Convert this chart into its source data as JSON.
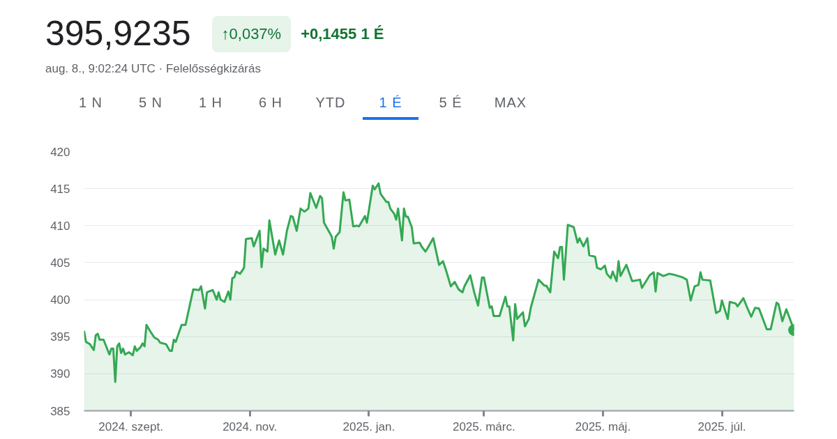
{
  "chart_data": {
    "type": "area",
    "title": "395,9235",
    "subtitle": "aug. 8., 9:02:24 UTC · Felelősségkizárás",
    "annotations": [
      "↑0,037%",
      "+0,1455 1 É",
      "1 N",
      "5 N",
      "1 H",
      "6 H",
      "YTD",
      "1 É",
      "5 É",
      "MAX"
    ],
    "x": [
      "2024-08-08",
      "2024-08-09",
      "2024-08-11",
      "2024-08-13",
      "2024-08-14",
      "2024-08-15",
      "2024-08-16",
      "2024-08-18",
      "2024-08-21",
      "2024-08-22",
      "2024-08-23",
      "2024-08-24",
      "2024-08-25",
      "2024-08-26",
      "2024-08-27",
      "2024-08-28",
      "2024-08-29",
      "2024-08-31",
      "2024-09-02",
      "2024-09-03",
      "2024-09-04",
      "2024-09-06",
      "2024-09-07",
      "2024-09-08",
      "2024-09-09",
      "2024-09-11",
      "2024-09-13",
      "2024-09-15",
      "2024-09-16",
      "2024-09-19",
      "2024-09-21",
      "2024-09-22",
      "2024-09-23",
      "2024-09-24",
      "2024-09-27",
      "2024-09-29",
      "2024-10-03",
      "2024-10-06",
      "2024-10-07",
      "2024-10-09",
      "2024-10-10",
      "2024-10-13",
      "2024-10-15",
      "2024-10-16",
      "2024-10-17",
      "2024-10-19",
      "2024-10-21",
      "2024-10-22",
      "2024-10-23",
      "2024-10-24",
      "2024-10-25",
      "2024-10-27",
      "2024-10-29",
      "2024-10-30",
      "2024-11-02",
      "2024-11-03",
      "2024-11-04",
      "2024-11-06",
      "2024-11-07",
      "2024-11-08",
      "2024-11-10",
      "2024-11-11",
      "2024-11-14",
      "2024-11-16",
      "2024-11-18",
      "2024-11-20",
      "2024-11-22",
      "2024-11-23",
      "2024-11-25",
      "2024-11-27",
      "2024-11-29",
      "2024-12-01",
      "2024-12-02",
      "2024-12-05",
      "2024-12-07",
      "2024-12-08",
      "2024-12-09",
      "2024-12-12",
      "2024-12-13",
      "2024-12-14",
      "2024-12-15",
      "2024-12-17",
      "2024-12-19",
      "2024-12-20",
      "2024-12-22",
      "2024-12-24",
      "2024-12-26",
      "2024-12-27",
      "2024-12-30",
      "2024-12-31",
      "2025-01-03",
      "2025-01-04",
      "2025-01-06",
      "2025-01-07",
      "2025-01-10",
      "2025-01-11",
      "2025-01-12",
      "2025-01-14",
      "2025-01-15",
      "2025-01-16",
      "2025-01-18",
      "2025-01-19",
      "2025-01-20",
      "2025-01-21",
      "2025-01-23",
      "2025-01-24",
      "2025-01-27",
      "2025-01-28",
      "2025-01-30",
      "2025-01-31",
      "2025-02-03",
      "2025-02-06",
      "2025-02-08",
      "2025-02-10",
      "2025-02-12",
      "2025-02-14",
      "2025-02-16",
      "2025-02-18",
      "2025-02-19",
      "2025-02-22",
      "2025-02-24",
      "2025-02-26",
      "2025-02-28",
      "2025-03-01",
      "2025-03-04",
      "2025-03-05",
      "2025-03-06",
      "2025-03-09",
      "2025-03-12",
      "2025-03-13",
      "2025-03-14",
      "2025-03-16",
      "2025-03-17",
      "2025-03-18",
      "2025-03-21",
      "2025-03-22",
      "2025-03-24",
      "2025-03-25",
      "2025-03-29",
      "2025-04-01",
      "2025-04-02",
      "2025-04-04",
      "2025-04-06",
      "2025-04-08",
      "2025-04-09",
      "2025-04-10",
      "2025-04-11",
      "2025-04-13",
      "2025-04-16",
      "2025-04-18",
      "2025-04-19",
      "2025-04-21",
      "2025-04-23",
      "2025-04-24",
      "2025-04-27",
      "2025-04-28",
      "2025-04-30",
      "2025-05-02",
      "2025-05-03",
      "2025-05-05",
      "2025-05-06",
      "2025-05-08",
      "2025-05-09",
      "2025-05-10",
      "2025-05-13",
      "2025-05-16",
      "2025-05-20",
      "2025-05-21",
      "2025-05-25",
      "2025-05-27",
      "2025-05-28",
      "2025-05-29",
      "2025-06-01",
      "2025-06-04",
      "2025-06-06",
      "2025-06-11",
      "2025-06-13",
      "2025-06-15",
      "2025-06-17",
      "2025-06-19",
      "2025-06-20",
      "2025-06-21",
      "2025-06-25",
      "2025-06-28",
      "2025-06-30",
      "2025-07-01",
      "2025-07-04",
      "2025-07-05",
      "2025-07-08",
      "2025-07-09",
      "2025-07-12",
      "2025-07-14",
      "2025-07-16",
      "2025-07-18",
      "2025-07-20",
      "2025-07-24",
      "2025-07-26",
      "2025-07-29",
      "2025-07-30",
      "2025-08-01",
      "2025-08-03",
      "2025-08-04",
      "2025-08-07"
    ],
    "series": [
      {
        "color": "#34a853",
        "values": [
          395.8,
          394.3,
          394.0,
          393.2,
          395.2,
          395.4,
          394.6,
          394.6,
          392.6,
          393.4,
          393.4,
          388.9,
          393.7,
          394.1,
          392.8,
          393.4,
          392.6,
          392.9,
          392.5,
          393.7,
          393.1,
          393.6,
          394.1,
          393.7,
          396.6,
          395.7,
          394.9,
          394.6,
          394.2,
          394.0,
          393.1,
          393.1,
          394.6,
          394.3,
          396.6,
          396.6,
          401.4,
          401.3,
          401.8,
          398.8,
          401.0,
          401.3,
          400.0,
          401.0,
          400.0,
          399.7,
          401.1,
          400.0,
          402.9,
          403.0,
          403.8,
          403.5,
          404.3,
          408.2,
          408.3,
          407.2,
          407.9,
          409.3,
          404.4,
          406.9,
          406.5,
          410.7,
          406.1,
          408.0,
          406.1,
          409.3,
          411.3,
          411.2,
          409.3,
          412.3,
          411.9,
          412.3,
          414.4,
          412.4,
          414.0,
          413.7,
          410.4,
          409.0,
          408.5,
          406.9,
          408.5,
          409.1,
          414.5,
          413.4,
          413.5,
          409.9,
          410.0,
          409.9,
          411.3,
          410.4,
          415.4,
          414.9,
          415.7,
          414.3,
          413.2,
          413.2,
          412.3,
          411.6,
          410.8,
          412.3,
          408.0,
          412.3,
          411.2,
          411.2,
          409.8,
          407.6,
          407.7,
          407.2,
          406.5,
          406.9,
          408.3,
          404.7,
          405.2,
          403.6,
          401.8,
          402.4,
          401.4,
          401.0,
          401.8,
          403.3,
          401.0,
          399.2,
          403.0,
          403.0,
          398.9,
          399.1,
          397.8,
          397.8,
          400.4,
          399.1,
          399.1,
          394.5,
          399.4,
          397.4,
          398.3,
          396.4,
          397.4,
          398.9,
          402.7,
          401.9,
          401.9,
          401.0,
          406.5,
          405.6,
          407.1,
          407.1,
          402.7,
          410.1,
          409.8,
          407.7,
          408.3,
          407.2,
          408.3,
          406.0,
          405.8,
          404.3,
          404.1,
          404.6,
          403.5,
          402.9,
          403.8,
          402.5,
          405.2,
          403.2,
          404.7,
          402.5,
          402.7,
          401.6,
          403.3,
          403.7,
          401.1,
          403.6,
          403.2,
          403.5,
          403.4,
          403.0,
          402.7,
          399.9,
          401.8,
          402.0,
          403.7,
          402.7,
          402.6,
          398.2,
          398.5,
          399.9,
          397.4,
          399.7,
          399.5,
          399.1,
          400.2,
          398.9,
          397.7,
          398.9,
          398.8,
          396.0,
          396.0,
          399.6,
          399.4,
          397.1,
          398.7,
          398.0,
          395.9
        ]
      }
    ],
    "xlim": [
      "2024-08-08",
      "2025-08-07"
    ],
    "xticks": [
      {
        "value": "2024-09-01",
        "label": "2024. szept."
      },
      {
        "value": "2024-11-01",
        "label": "2024. nov."
      },
      {
        "value": "2025-01-01",
        "label": "2025. jan."
      },
      {
        "value": "2025-03-01",
        "label": "2025. márc."
      },
      {
        "value": "2025-05-01",
        "label": "2025. máj."
      },
      {
        "value": "2025-07-01",
        "label": "2025. júl."
      }
    ],
    "ylim": [
      385,
      420
    ],
    "yticks": [
      385,
      390,
      395,
      400,
      405,
      410,
      415,
      420
    ],
    "grid": "y",
    "marker": "none",
    "line_style": "solid"
  }
}
